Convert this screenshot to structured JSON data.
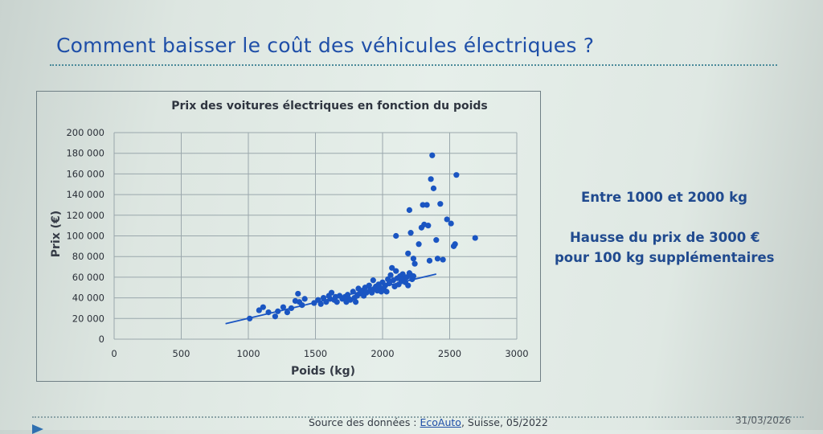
{
  "slide": {
    "title": "Comment baisser le coût des véhicules électriques ?",
    "notes": [
      "Entre 1000 et 2000 kg",
      "Hausse du prix de 3000 €",
      "pour 100 kg supplémentaires"
    ],
    "footer": {
      "source_prefix": "Source des données : ",
      "source_link": "EcoAuto",
      "source_suffix": ", Suisse, 05/2022",
      "date": "31/03/2026"
    }
  },
  "colors": {
    "title": "#1f4fa8",
    "points": "#1a55c2",
    "trendline": "#1a55c2",
    "notes": "#204a8f"
  },
  "chart_data": {
    "type": "scatter",
    "title": "Prix des voitures électriques en fonction du poids",
    "xlabel": "Poids (kg)",
    "ylabel": "Prix (€)",
    "xlim": [
      0,
      3000
    ],
    "ylim": [
      0,
      200000
    ],
    "xticks": [
      "0",
      "500",
      "1000",
      "1500",
      "2000",
      "2500",
      "3000"
    ],
    "yticks": [
      "0",
      "20 000",
      "40 000",
      "60 000",
      "80 000",
      "100 000",
      "120 000",
      "140 000",
      "160 000",
      "180 000",
      "200 000"
    ],
    "grid": true,
    "trendline": [
      [
        830,
        15000
      ],
      [
        2400,
        63000
      ]
    ],
    "points": [
      [
        1010,
        20000
      ],
      [
        1080,
        28000
      ],
      [
        1110,
        31000
      ],
      [
        1150,
        26000
      ],
      [
        1200,
        22000
      ],
      [
        1220,
        27000
      ],
      [
        1260,
        31000
      ],
      [
        1290,
        26000
      ],
      [
        1320,
        30000
      ],
      [
        1350,
        37000
      ],
      [
        1370,
        44000
      ],
      [
        1380,
        36000
      ],
      [
        1400,
        33000
      ],
      [
        1420,
        39000
      ],
      [
        1490,
        35000
      ],
      [
        1520,
        38000
      ],
      [
        1540,
        34000
      ],
      [
        1560,
        40000
      ],
      [
        1580,
        36000
      ],
      [
        1600,
        42000
      ],
      [
        1610,
        39000
      ],
      [
        1620,
        45000
      ],
      [
        1640,
        38000
      ],
      [
        1650,
        41000
      ],
      [
        1660,
        36000
      ],
      [
        1680,
        42000
      ],
      [
        1700,
        39000
      ],
      [
        1720,
        41000
      ],
      [
        1730,
        36000
      ],
      [
        1740,
        43000
      ],
      [
        1750,
        39000
      ],
      [
        1760,
        38000
      ],
      [
        1780,
        46000
      ],
      [
        1790,
        40000
      ],
      [
        1800,
        36000
      ],
      [
        1810,
        42000
      ],
      [
        1820,
        49000
      ],
      [
        1830,
        44000
      ],
      [
        1850,
        47000
      ],
      [
        1860,
        42000
      ],
      [
        1870,
        50000
      ],
      [
        1880,
        45000
      ],
      [
        1900,
        52000
      ],
      [
        1910,
        48000
      ],
      [
        1920,
        45000
      ],
      [
        1930,
        57000
      ],
      [
        1940,
        49000
      ],
      [
        1950,
        51000
      ],
      [
        1960,
        47000
      ],
      [
        1970,
        53000
      ],
      [
        1980,
        50000
      ],
      [
        1990,
        46000
      ],
      [
        2000,
        55000
      ],
      [
        2010,
        48000
      ],
      [
        2020,
        52000
      ],
      [
        2030,
        46000
      ],
      [
        2040,
        58000
      ],
      [
        2050,
        54000
      ],
      [
        2060,
        62000
      ],
      [
        2070,
        69000
      ],
      [
        2080,
        57000
      ],
      [
        2090,
        51000
      ],
      [
        2100,
        66000
      ],
      [
        2110,
        59000
      ],
      [
        2120,
        53000
      ],
      [
        2130,
        61000
      ],
      [
        2140,
        56000
      ],
      [
        2150,
        63000
      ],
      [
        2160,
        58000
      ],
      [
        2170,
        55000
      ],
      [
        2180,
        60000
      ],
      [
        2190,
        52000
      ],
      [
        2200,
        64000
      ],
      [
        2210,
        62000
      ],
      [
        2220,
        58000
      ],
      [
        2230,
        61000
      ],
      [
        2100,
        100000
      ],
      [
        2190,
        83000
      ],
      [
        2200,
        125000
      ],
      [
        2210,
        103000
      ],
      [
        2230,
        78000
      ],
      [
        2240,
        73000
      ],
      [
        2270,
        92000
      ],
      [
        2290,
        108000
      ],
      [
        2300,
        130000
      ],
      [
        2310,
        111000
      ],
      [
        2330,
        130000
      ],
      [
        2340,
        110000
      ],
      [
        2350,
        76000
      ],
      [
        2360,
        155000
      ],
      [
        2370,
        178000
      ],
      [
        2380,
        146000
      ],
      [
        2400,
        96000
      ],
      [
        2410,
        78000
      ],
      [
        2430,
        131000
      ],
      [
        2450,
        77000
      ],
      [
        2480,
        116000
      ],
      [
        2510,
        112000
      ],
      [
        2530,
        90000
      ],
      [
        2540,
        92000
      ],
      [
        2550,
        159000
      ],
      [
        2690,
        98000
      ]
    ]
  }
}
